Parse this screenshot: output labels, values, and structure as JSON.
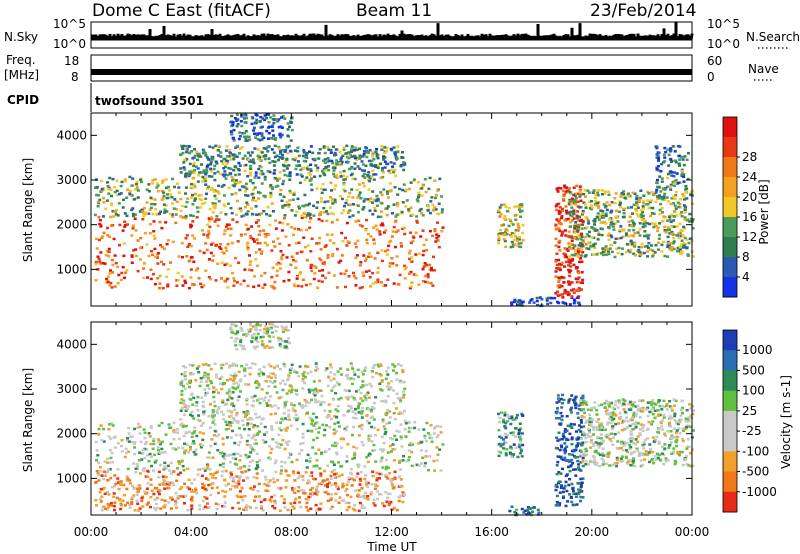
{
  "header": {
    "station": "Dome C East (fitACF)",
    "beam": "Beam 11",
    "date": "23/Feb/2014"
  },
  "status_panels": {
    "nsky": {
      "label": "N.Sky",
      "ticks": [
        "10^5",
        "10^0"
      ]
    },
    "nsearch": {
      "label": "N.Search",
      "ticks": [
        "10^5",
        "10^0"
      ]
    },
    "freq": {
      "label": "Freq.",
      "unit": "[MHz]",
      "ticks": [
        "18",
        "8"
      ]
    },
    "nave": {
      "label": "Nave",
      "ticks": [
        "60",
        "0"
      ]
    },
    "cpid": {
      "label": "CPID",
      "value": "twofsound 3501"
    }
  },
  "chart_data": [
    {
      "type": "heatmap",
      "name": "power",
      "ylabel": "Slant Range [km]",
      "xlabel": "",
      "xlim": [
        0,
        24
      ],
      "ylim": [
        180,
        4500
      ],
      "yticks": [
        1000,
        2000,
        3000,
        4000
      ],
      "xtick_labels": [
        "00:00",
        "04:00",
        "08:00",
        "12:00",
        "16:00",
        "20:00",
        "00:00"
      ],
      "colorbar": {
        "label": "Power [dB]",
        "ticks": [
          "4",
          "8",
          "12",
          "16",
          "20",
          "24",
          "28"
        ],
        "colors": [
          "#1432e6",
          "#2a5ab4",
          "#2e7d4f",
          "#4b9b5a",
          "#f0c828",
          "#f4a020",
          "#f07818",
          "#e83814",
          "#e01010"
        ]
      },
      "bands": [
        {
          "t0": 0.1,
          "t1": 14.0,
          "r0": 600,
          "r1": 2200,
          "level": 0.75
        },
        {
          "t0": 0.1,
          "t1": 14.0,
          "r0": 2200,
          "r1": 3100,
          "level": 0.4
        },
        {
          "t0": 3.5,
          "t1": 12.5,
          "r0": 3100,
          "r1": 3800,
          "level": 0.3
        },
        {
          "t0": 5.5,
          "t1": 8.0,
          "r0": 3900,
          "r1": 4500,
          "level": 0.2
        },
        {
          "t0": 16.2,
          "t1": 17.2,
          "r0": 1500,
          "r1": 2500,
          "level": 0.5
        },
        {
          "t0": 16.5,
          "t1": 19.5,
          "r0": 200,
          "r1": 400,
          "level": 0.05
        },
        {
          "t0": 18.5,
          "t1": 19.6,
          "r0": 400,
          "r1": 2900,
          "level": 0.9
        },
        {
          "t0": 19.0,
          "t1": 24.0,
          "r0": 1300,
          "r1": 2800,
          "level": 0.4
        },
        {
          "t0": 22.5,
          "t1": 23.8,
          "r0": 2800,
          "r1": 3800,
          "level": 0.25
        }
      ]
    },
    {
      "type": "heatmap",
      "name": "velocity",
      "ylabel": "Slant Range [km]",
      "xlabel": "Time UT",
      "xlim": [
        0,
        24
      ],
      "ylim": [
        180,
        4500
      ],
      "yticks": [
        1000,
        2000,
        3000,
        4000
      ],
      "xtick_labels": [
        "00:00",
        "04:00",
        "08:00",
        "12:00",
        "16:00",
        "20:00",
        "00:00"
      ],
      "colorbar": {
        "label": "Velocity [m s-1]",
        "ticks": [
          "1000",
          "500",
          "100",
          "25",
          "-25",
          "-100",
          "-500",
          "-1000"
        ],
        "colors": [
          "#1e3cb4",
          "#2a6eb4",
          "#2e8b57",
          "#60c040",
          "#c8c8c8",
          "#c8c8c8",
          "#f0a028",
          "#f07818",
          "#e82a14"
        ]
      },
      "bands": [
        {
          "t0": 0.1,
          "t1": 14.0,
          "r0": 1200,
          "r1": 2300,
          "level": 0.5
        },
        {
          "t0": 0.1,
          "t1": 12.5,
          "r0": 300,
          "r1": 1200,
          "level": 0.75
        },
        {
          "t0": 3.5,
          "t1": 12.5,
          "r0": 2300,
          "r1": 3600,
          "level": 0.5
        },
        {
          "t0": 5.5,
          "t1": 8.0,
          "r0": 3900,
          "r1": 4500,
          "level": 0.5
        },
        {
          "t0": 16.2,
          "t1": 17.2,
          "r0": 1500,
          "r1": 2500,
          "level": 0.3
        },
        {
          "t0": 16.5,
          "t1": 18.0,
          "r0": 200,
          "r1": 400,
          "level": 0.15
        },
        {
          "t0": 18.5,
          "t1": 19.6,
          "r0": 400,
          "r1": 2900,
          "level": 0.1
        },
        {
          "t0": 19.5,
          "t1": 24.0,
          "r0": 1300,
          "r1": 2800,
          "level": 0.5
        }
      ]
    }
  ]
}
